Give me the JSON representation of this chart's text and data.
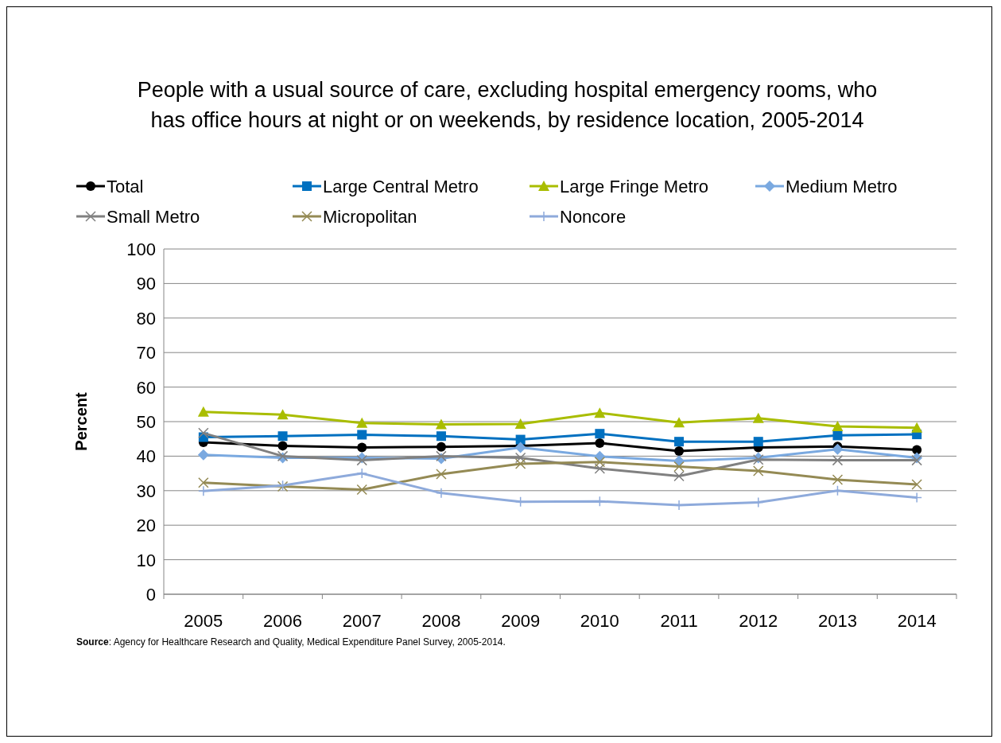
{
  "chart_data": {
    "type": "line",
    "title": "People with a usual source of care, excluding hospital emergency rooms, who\nhas office hours at night or on weekends, by residence location, 2005-2014",
    "ylabel": "Percent",
    "categories": [
      "2005",
      "2006",
      "2007",
      "2008",
      "2009",
      "2010",
      "2011",
      "2012",
      "2013",
      "2014"
    ],
    "ylim": [
      0,
      100
    ],
    "yticks": [
      0,
      10,
      20,
      30,
      40,
      50,
      60,
      70,
      80,
      90,
      100
    ],
    "grid": "y",
    "legend": "top",
    "annotations": [
      "Source: Agency for Healthcare Research and Quality, Medical Expenditure Panel Survey, 2005-2014."
    ],
    "series": [
      {
        "name": "Total",
        "color": "#000000",
        "marker": "circle",
        "values": [
          44,
          43,
          42.5,
          42.7,
          43,
          43.8,
          41.5,
          42.5,
          42.8,
          41.8
        ]
      },
      {
        "name": "Large Central Metro",
        "color": "#0070c0",
        "marker": "square",
        "values": [
          45.5,
          45.8,
          46.2,
          45.8,
          44.8,
          46.5,
          44.2,
          44.2,
          46,
          46.3
        ]
      },
      {
        "name": "Large Fringe Metro",
        "color": "#a9bd00",
        "marker": "triangle",
        "values": [
          52.8,
          52,
          49.6,
          49.2,
          49.3,
          52.5,
          49.7,
          51,
          48.6,
          48.2
        ]
      },
      {
        "name": "Medium Metro",
        "color": "#7aa9e0",
        "marker": "diamond",
        "values": [
          40.4,
          39.5,
          39.5,
          39.3,
          42.5,
          39.9,
          38.6,
          39.5,
          42,
          39.5
        ]
      },
      {
        "name": "Small Metro",
        "color": "#808080",
        "marker": "cross",
        "values": [
          46.7,
          40,
          38.8,
          40,
          39.5,
          36.4,
          34.2,
          39,
          38.8,
          38.8
        ]
      },
      {
        "name": "Micropolitan",
        "color": "#948a54",
        "marker": "cross",
        "values": [
          32.3,
          31.2,
          30.3,
          34.8,
          37.8,
          38.3,
          37,
          35.7,
          33.2,
          31.8
        ]
      },
      {
        "name": "Noncore",
        "color": "#8eaadb",
        "marker": "plus",
        "values": [
          29.9,
          31.5,
          35,
          29.3,
          26.8,
          26.9,
          25.8,
          26.6,
          30,
          28
        ]
      }
    ]
  }
}
